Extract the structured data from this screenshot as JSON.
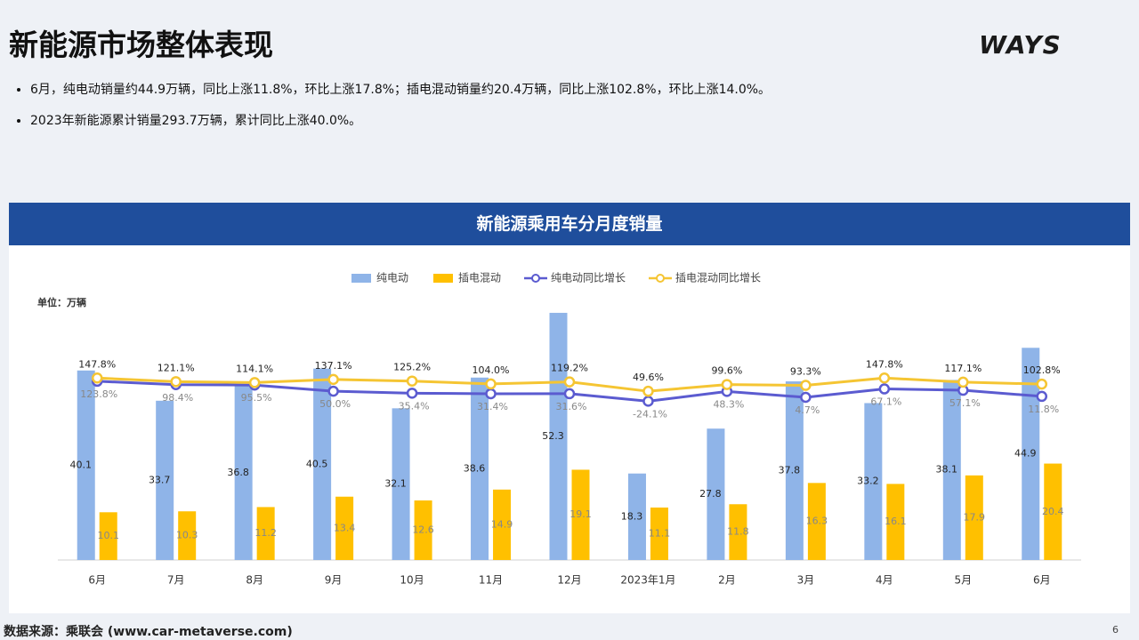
{
  "header": {
    "title": "新能源市场整体表现",
    "logo": "WAYS"
  },
  "bullets": [
    "6月，纯电动销量约44.9万辆，同比上涨11.8%，环比上涨17.8%；插电混动销量约20.4万辆，同比上涨102.8%，环比上涨14.0%。",
    "2023年新能源累计销量293.7万辆，累计同比上涨40.0%。"
  ],
  "footer": {
    "source": "数据来源：乘联会 (www.car-metaverse.com)",
    "page": "6"
  },
  "chart_data": {
    "type": "bar",
    "title": "新能源乘用车分月度销量",
    "unit_label": "单位：万辆",
    "categories": [
      "6月",
      "7月",
      "8月",
      "9月",
      "10月",
      "11月",
      "12月",
      "2023年1月",
      "2月",
      "3月",
      "4月",
      "5月",
      "6月"
    ],
    "ylim": [
      0,
      60
    ],
    "y2lim": [
      -1200,
      900
    ],
    "legend": "top",
    "series": [
      {
        "name": "纯电动",
        "type": "bar",
        "color": "#8fb4e8",
        "values": [
          40.1,
          33.7,
          36.8,
          40.5,
          32.1,
          38.6,
          52.3,
          18.3,
          27.8,
          37.8,
          33.2,
          38.1,
          44.9
        ]
      },
      {
        "name": "插电混动",
        "type": "bar",
        "color": "#ffc000",
        "values": [
          10.1,
          10.3,
          11.2,
          13.4,
          12.6,
          14.9,
          19.1,
          11.1,
          11.8,
          16.3,
          16.1,
          17.9,
          20.4
        ]
      },
      {
        "name": "纯电动同比增长",
        "type": "line",
        "axis": "y2",
        "color": "#5b5bd0",
        "values": [
          123.8,
          98.4,
          95.5,
          50.0,
          35.4,
          31.4,
          31.6,
          -24.1,
          48.3,
          4.7,
          67.1,
          57.1,
          11.8
        ],
        "value_labels": [
          "123.8%",
          "98.4%",
          "95.5%",
          "50.0%",
          "35.4%",
          "31.4%",
          "31.6%",
          "-24.1%",
          "48.3%",
          "4.7%",
          "67.1%",
          "57.1%",
          "11.8%"
        ]
      },
      {
        "name": "插电混动同比增长",
        "type": "line",
        "axis": "y2",
        "color": "#f5c533",
        "values": [
          147.8,
          121.1,
          114.1,
          137.1,
          125.2,
          104.0,
          119.2,
          49.6,
          99.6,
          93.3,
          147.8,
          117.1,
          102.8
        ],
        "value_labels": [
          "147.8%",
          "121.1%",
          "114.1%",
          "137.1%",
          "125.2%",
          "104.0%",
          "119.2%",
          "49.6%",
          "99.6%",
          "93.3%",
          "147.8%",
          "117.1%",
          "102.8%"
        ]
      }
    ]
  }
}
